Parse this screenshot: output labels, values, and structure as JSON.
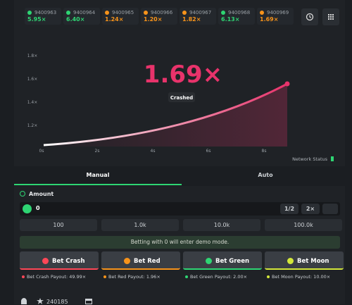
{
  "history": [
    {
      "id": "9400963",
      "multiplier": "5.95×",
      "color": "#2ed573"
    },
    {
      "id": "9400964",
      "multiplier": "6.40×",
      "color": "#2ed573"
    },
    {
      "id": "9400965",
      "multiplier": "1.24×",
      "color": "#f7931a"
    },
    {
      "id": "9400966",
      "multiplier": "1.20×",
      "color": "#f7931a"
    },
    {
      "id": "9400967",
      "multiplier": "1.82×",
      "color": "#f7931a"
    },
    {
      "id": "9400968",
      "multiplier": "6.13×",
      "color": "#2ed573"
    },
    {
      "id": "9400969",
      "multiplier": "1.69×",
      "color": "#f7931a"
    }
  ],
  "graph": {
    "multiplier": "1.69×",
    "status": "Crashed",
    "y_labels": [
      "1.8×",
      "1.6×",
      "1.4×",
      "1.2×"
    ],
    "x_labels": [
      "0s",
      "2s",
      "4s",
      "6s",
      "8s"
    ],
    "network_status": "Network Status"
  },
  "tabs": [
    "Manual",
    "Auto"
  ],
  "amount": {
    "label": "Amount",
    "value": "0",
    "half": "1/2",
    "double": "2×"
  },
  "quick_amounts": [
    "100",
    "1.0k",
    "10.0k",
    "100.0k"
  ],
  "notice": "Betting with 0 will enter demo mode.",
  "bets": [
    {
      "label": "Bet Crash",
      "payout": "Bet Crash Payout: 49.99×",
      "color": "#ff4757"
    },
    {
      "label": "Bet Red",
      "payout": "Bet Red Payout: 1.96×",
      "color": "#f7931a"
    },
    {
      "label": "Bet Green",
      "payout": "Bet Green Payout: 2.00×",
      "color": "#2ed573"
    },
    {
      "label": "Bet Moon",
      "payout": "Bet Moon Payout: 10.00×",
      "color": "#d4e83a"
    }
  ],
  "footer": {
    "count": "240185"
  }
}
